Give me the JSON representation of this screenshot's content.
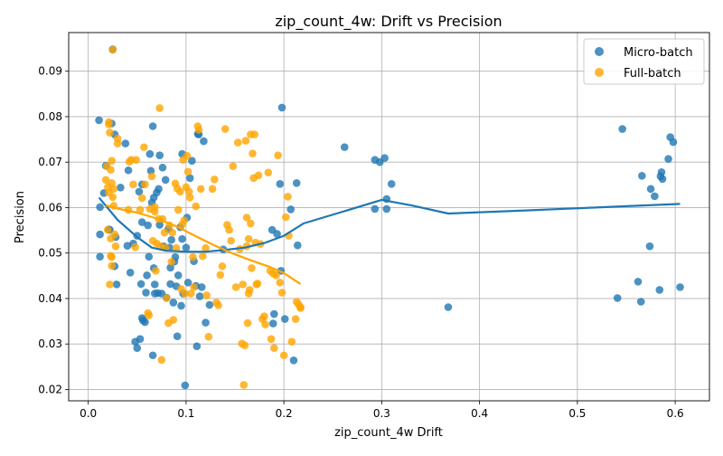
{
  "chart_data": {
    "type": "scatter",
    "title": "zip_count_4w: Drift vs Precision",
    "xlabel": "zip_count_4w Drift",
    "ylabel": "Precision",
    "xlim": [
      -0.02,
      0.635
    ],
    "ylim": [
      0.0175,
      0.0985
    ],
    "x_ticks": [
      0.0,
      0.1,
      0.2,
      0.3,
      0.4,
      0.5,
      0.6
    ],
    "x_tick_labels": [
      "0.0",
      "0.1",
      "0.2",
      "0.3",
      "0.4",
      "0.5",
      "0.6"
    ],
    "y_ticks": [
      0.02,
      0.03,
      0.04,
      0.05,
      0.06,
      0.07,
      0.08,
      0.09
    ],
    "y_tick_labels": [
      "0.02",
      "0.03",
      "0.04",
      "0.05",
      "0.06",
      "0.07",
      "0.08",
      "0.09"
    ],
    "grid": true,
    "legend": {
      "position": "top-right"
    },
    "series": [
      {
        "name": "Micro-batch",
        "color": "#1f77b4",
        "points": [
          [
            0.011,
            0.0792
          ],
          [
            0.012,
            0.0601
          ],
          [
            0.012,
            0.0541
          ],
          [
            0.012,
            0.0492
          ],
          [
            0.016,
            0.0632
          ],
          [
            0.018,
            0.0692
          ],
          [
            0.021,
            0.0552
          ],
          [
            0.022,
            0.0551
          ],
          [
            0.024,
            0.0785
          ],
          [
            0.025,
            0.0948
          ],
          [
            0.027,
            0.0761
          ],
          [
            0.027,
            0.0471
          ],
          [
            0.028,
            0.0535
          ],
          [
            0.029,
            0.0431
          ],
          [
            0.033,
            0.0644
          ],
          [
            0.038,
            0.0741
          ],
          [
            0.04,
            0.0516
          ],
          [
            0.041,
            0.0682
          ],
          [
            0.043,
            0.0457
          ],
          [
            0.046,
            0.0521
          ],
          [
            0.048,
            0.0305
          ],
          [
            0.05,
            0.0291
          ],
          [
            0.05,
            0.0538
          ],
          [
            0.052,
            0.0635
          ],
          [
            0.053,
            0.0311
          ],
          [
            0.054,
            0.0432
          ],
          [
            0.055,
            0.0651
          ],
          [
            0.055,
            0.0568
          ],
          [
            0.055,
            0.0357
          ],
          [
            0.056,
            0.0352
          ],
          [
            0.058,
            0.0348
          ],
          [
            0.059,
            0.0413
          ],
          [
            0.06,
            0.0451
          ],
          [
            0.061,
            0.0561
          ],
          [
            0.062,
            0.0492
          ],
          [
            0.063,
            0.0718
          ],
          [
            0.064,
            0.0681
          ],
          [
            0.065,
            0.0611
          ],
          [
            0.066,
            0.0275
          ],
          [
            0.066,
            0.0779
          ],
          [
            0.067,
            0.0622
          ],
          [
            0.067,
            0.0467
          ],
          [
            0.068,
            0.0431
          ],
          [
            0.068,
            0.0411
          ],
          [
            0.07,
            0.0633
          ],
          [
            0.071,
            0.0412
          ],
          [
            0.072,
            0.0641
          ],
          [
            0.073,
            0.0562
          ],
          [
            0.073,
            0.0715
          ],
          [
            0.075,
            0.0411
          ],
          [
            0.076,
            0.0688
          ],
          [
            0.077,
            0.0515
          ],
          [
            0.079,
            0.0661
          ],
          [
            0.08,
            0.0402
          ],
          [
            0.082,
            0.0553
          ],
          [
            0.083,
            0.0512
          ],
          [
            0.084,
            0.0432
          ],
          [
            0.084,
            0.0468
          ],
          [
            0.085,
            0.0529
          ],
          [
            0.087,
            0.0391
          ],
          [
            0.088,
            0.0481
          ],
          [
            0.089,
            0.0491
          ],
          [
            0.09,
            0.0427
          ],
          [
            0.091,
            0.0317
          ],
          [
            0.092,
            0.0451
          ],
          [
            0.094,
            0.0557
          ],
          [
            0.095,
            0.0384
          ],
          [
            0.096,
            0.0718
          ],
          [
            0.096,
            0.0531
          ],
          [
            0.097,
            0.0411
          ],
          [
            0.099,
            0.0209
          ],
          [
            0.1,
            0.0512
          ],
          [
            0.101,
            0.0578
          ],
          [
            0.102,
            0.0435
          ],
          [
            0.104,
            0.0665
          ],
          [
            0.106,
            0.0703
          ],
          [
            0.108,
            0.0482
          ],
          [
            0.11,
            0.0428
          ],
          [
            0.111,
            0.0295
          ],
          [
            0.112,
            0.0762
          ],
          [
            0.113,
            0.0761
          ],
          [
            0.114,
            0.0405
          ],
          [
            0.116,
            0.0425
          ],
          [
            0.118,
            0.0746
          ],
          [
            0.12,
            0.0347
          ],
          [
            0.124,
            0.0386
          ],
          [
            0.138,
            0.0508
          ],
          [
            0.188,
            0.0551
          ],
          [
            0.189,
            0.0345
          ],
          [
            0.19,
            0.0366
          ],
          [
            0.193,
            0.0542
          ],
          [
            0.196,
            0.0652
          ],
          [
            0.197,
            0.0461
          ],
          [
            0.198,
            0.082
          ],
          [
            0.201,
            0.0355
          ],
          [
            0.207,
            0.0596
          ],
          [
            0.21,
            0.0264
          ],
          [
            0.213,
            0.0654
          ],
          [
            0.214,
            0.0517
          ],
          [
            0.262,
            0.0733
          ],
          [
            0.293,
            0.0705
          ],
          [
            0.293,
            0.0597
          ],
          [
            0.298,
            0.07
          ],
          [
            0.303,
            0.0709
          ],
          [
            0.305,
            0.0597
          ],
          [
            0.305,
            0.0619
          ],
          [
            0.31,
            0.0652
          ],
          [
            0.368,
            0.0381
          ],
          [
            0.541,
            0.0401
          ],
          [
            0.546,
            0.0773
          ],
          [
            0.562,
            0.0437
          ],
          [
            0.565,
            0.0393
          ],
          [
            0.566,
            0.067
          ],
          [
            0.574,
            0.0515
          ],
          [
            0.575,
            0.0641
          ],
          [
            0.579,
            0.0625
          ],
          [
            0.584,
            0.0419
          ],
          [
            0.585,
            0.0669
          ],
          [
            0.586,
            0.0678
          ],
          [
            0.587,
            0.0663
          ],
          [
            0.593,
            0.0707
          ],
          [
            0.595,
            0.0755
          ],
          [
            0.598,
            0.0744
          ],
          [
            0.605,
            0.0425
          ]
        ],
        "trend": [
          [
            0.011,
            0.0622
          ],
          [
            0.03,
            0.0573
          ],
          [
            0.05,
            0.0535
          ],
          [
            0.065,
            0.0512
          ],
          [
            0.08,
            0.0505
          ],
          [
            0.1,
            0.0503
          ],
          [
            0.12,
            0.0503
          ],
          [
            0.14,
            0.0507
          ],
          [
            0.16,
            0.0512
          ],
          [
            0.18,
            0.0522
          ],
          [
            0.2,
            0.0538
          ],
          [
            0.22,
            0.0565
          ],
          [
            0.26,
            0.0591
          ],
          [
            0.3,
            0.0617
          ],
          [
            0.33,
            0.0605
          ],
          [
            0.368,
            0.0587
          ],
          [
            0.45,
            0.0594
          ],
          [
            0.55,
            0.0603
          ],
          [
            0.605,
            0.0608
          ]
        ]
      },
      {
        "name": "Full-batch",
        "color": "#ffa500",
        "points": [
          [
            0.018,
            0.0661
          ],
          [
            0.019,
            0.0691
          ],
          [
            0.02,
            0.0551
          ],
          [
            0.02,
            0.0645
          ],
          [
            0.021,
            0.0788
          ],
          [
            0.021,
            0.0783
          ],
          [
            0.021,
            0.0633
          ],
          [
            0.022,
            0.0765
          ],
          [
            0.022,
            0.0431
          ],
          [
            0.023,
            0.0494
          ],
          [
            0.023,
            0.0683
          ],
          [
            0.023,
            0.0532
          ],
          [
            0.024,
            0.0703
          ],
          [
            0.024,
            0.0654
          ],
          [
            0.024,
            0.0491
          ],
          [
            0.024,
            0.0472
          ],
          [
            0.025,
            0.0947
          ],
          [
            0.025,
            0.0623
          ],
          [
            0.026,
            0.0641
          ],
          [
            0.026,
            0.0604
          ],
          [
            0.027,
            0.0541
          ],
          [
            0.028,
            0.0515
          ],
          [
            0.03,
            0.0741
          ],
          [
            0.03,
            0.0752
          ],
          [
            0.041,
            0.0595
          ],
          [
            0.042,
            0.0701
          ],
          [
            0.044,
            0.0705
          ],
          [
            0.046,
            0.0651
          ],
          [
            0.048,
            0.0513
          ],
          [
            0.049,
            0.0705
          ],
          [
            0.053,
            0.0595
          ],
          [
            0.055,
            0.0621
          ],
          [
            0.057,
            0.0733
          ],
          [
            0.058,
            0.0651
          ],
          [
            0.061,
            0.0368
          ],
          [
            0.062,
            0.0363
          ],
          [
            0.063,
            0.0597
          ],
          [
            0.065,
            0.0669
          ],
          [
            0.066,
            0.0527
          ],
          [
            0.068,
            0.0601
          ],
          [
            0.068,
            0.0591
          ],
          [
            0.069,
            0.0461
          ],
          [
            0.07,
            0.0521
          ],
          [
            0.072,
            0.0575
          ],
          [
            0.073,
            0.0819
          ],
          [
            0.074,
            0.0515
          ],
          [
            0.075,
            0.0265
          ],
          [
            0.076,
            0.0575
          ],
          [
            0.078,
            0.0545
          ],
          [
            0.079,
            0.0511
          ],
          [
            0.08,
            0.0401
          ],
          [
            0.082,
            0.0346
          ],
          [
            0.083,
            0.0561
          ],
          [
            0.085,
            0.0481
          ],
          [
            0.086,
            0.0545
          ],
          [
            0.087,
            0.0353
          ],
          [
            0.089,
            0.0653
          ],
          [
            0.09,
            0.0511
          ],
          [
            0.091,
            0.0642
          ],
          [
            0.092,
            0.0595
          ],
          [
            0.094,
            0.0635
          ],
          [
            0.095,
            0.0421
          ],
          [
            0.096,
            0.0563
          ],
          [
            0.097,
            0.0705
          ],
          [
            0.098,
            0.0572
          ],
          [
            0.099,
            0.0411
          ],
          [
            0.1,
            0.0645
          ],
          [
            0.101,
            0.0714
          ],
          [
            0.102,
            0.0679
          ],
          [
            0.103,
            0.0635
          ],
          [
            0.104,
            0.0622
          ],
          [
            0.105,
            0.0411
          ],
          [
            0.107,
            0.0491
          ],
          [
            0.108,
            0.0425
          ],
          [
            0.11,
            0.0603
          ],
          [
            0.112,
            0.0779
          ],
          [
            0.113,
            0.0771
          ],
          [
            0.115,
            0.0641
          ],
          [
            0.117,
            0.0493
          ],
          [
            0.12,
            0.0511
          ],
          [
            0.121,
            0.0407
          ],
          [
            0.123,
            0.0316
          ],
          [
            0.127,
            0.0641
          ],
          [
            0.129,
            0.0662
          ],
          [
            0.131,
            0.0391
          ],
          [
            0.133,
            0.0385
          ],
          [
            0.135,
            0.0452
          ],
          [
            0.137,
            0.0471
          ],
          [
            0.14,
            0.0773
          ],
          [
            0.142,
            0.0562
          ],
          [
            0.144,
            0.0551
          ],
          [
            0.146,
            0.0527
          ],
          [
            0.148,
            0.0691
          ],
          [
            0.151,
            0.0425
          ],
          [
            0.153,
            0.0743
          ],
          [
            0.155,
            0.0509
          ],
          [
            0.157,
            0.0301
          ],
          [
            0.158,
            0.0431
          ],
          [
            0.159,
            0.021
          ],
          [
            0.16,
            0.0297
          ],
          [
            0.161,
            0.0747
          ],
          [
            0.162,
            0.0578
          ],
          [
            0.162,
            0.0515
          ],
          [
            0.163,
            0.0346
          ],
          [
            0.164,
            0.0531
          ],
          [
            0.164,
            0.0411
          ],
          [
            0.165,
            0.0419
          ],
          [
            0.166,
            0.0761
          ],
          [
            0.166,
            0.0565
          ],
          [
            0.167,
            0.0467
          ],
          [
            0.168,
            0.0719
          ],
          [
            0.169,
            0.0665
          ],
          [
            0.17,
            0.0761
          ],
          [
            0.171,
            0.0523
          ],
          [
            0.172,
            0.0431
          ],
          [
            0.173,
            0.0433
          ],
          [
            0.174,
            0.0671
          ],
          [
            0.176,
            0.052
          ],
          [
            0.178,
            0.0355
          ],
          [
            0.18,
            0.0361
          ],
          [
            0.181,
            0.0343
          ],
          [
            0.184,
            0.0677
          ],
          [
            0.186,
            0.0461
          ],
          [
            0.187,
            0.0311
          ],
          [
            0.189,
            0.0455
          ],
          [
            0.19,
            0.0291
          ],
          [
            0.192,
            0.0451
          ],
          [
            0.194,
            0.0715
          ],
          [
            0.196,
            0.0435
          ],
          [
            0.198,
            0.0413
          ],
          [
            0.2,
            0.0275
          ],
          [
            0.202,
            0.0579
          ],
          [
            0.204,
            0.0624
          ],
          [
            0.205,
            0.0538
          ],
          [
            0.208,
            0.0305
          ],
          [
            0.212,
            0.0355
          ],
          [
            0.213,
            0.0393
          ],
          [
            0.215,
            0.0387
          ],
          [
            0.217,
            0.0379
          ],
          [
            0.217,
            0.0381
          ]
        ],
        "trend": [
          [
            0.018,
            0.0605
          ],
          [
            0.03,
            0.0598
          ],
          [
            0.05,
            0.0589
          ],
          [
            0.07,
            0.0576
          ],
          [
            0.09,
            0.0559
          ],
          [
            0.11,
            0.0537
          ],
          [
            0.13,
            0.0516
          ],
          [
            0.15,
            0.0497
          ],
          [
            0.17,
            0.0481
          ],
          [
            0.185,
            0.047
          ],
          [
            0.2,
            0.0456
          ],
          [
            0.217,
            0.0432
          ]
        ]
      }
    ]
  }
}
